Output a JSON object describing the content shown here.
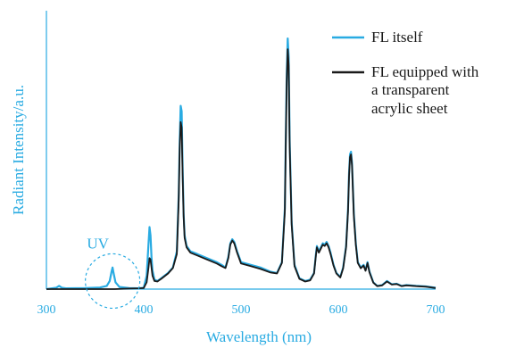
{
  "chart_data": {
    "type": "line",
    "xlabel": "Wavelength (nm)",
    "ylabel": "Radiant Intensity/a.u.",
    "xlim": [
      300,
      700
    ],
    "ylim": [
      0,
      1
    ],
    "x_ticks": [
      "300",
      "400",
      "500",
      "600",
      "700"
    ],
    "x_tick_values": [
      300,
      400,
      500,
      600,
      700
    ],
    "grid": false,
    "legend_position": "top-right",
    "legend": [
      {
        "series": 0,
        "lines": [
          "FL itself"
        ]
      },
      {
        "series": 1,
        "lines": [
          "FL equipped with",
          "a transparent",
          "acrylic sheet"
        ]
      }
    ],
    "annotations": [
      {
        "text": "UV",
        "circle_center": [
          368,
          0.03
        ],
        "circle_radius_nm": 28
      }
    ],
    "series": [
      {
        "color": "#29abe2",
        "x": [
          300,
          310,
          313,
          316,
          320,
          340,
          355,
          362,
          365,
          367,
          368,
          369,
          371,
          375,
          385,
          395,
          400,
          403,
          405,
          406,
          407,
          408,
          409,
          411,
          414,
          418,
          425,
          430,
          434,
          436,
          437,
          438,
          439,
          440,
          441,
          442,
          444,
          448,
          455,
          465,
          475,
          480,
          484,
          487,
          489,
          491,
          493,
          496,
          500,
          510,
          520,
          530,
          537,
          542,
          545,
          546,
          547,
          548,
          549,
          550,
          552,
          555,
          560,
          566,
          571,
          575,
          577,
          578,
          580,
          582,
          584,
          586,
          588,
          590,
          592,
          595,
          598,
          602,
          605,
          608,
          610,
          611,
          612,
          613,
          614,
          615,
          616,
          618,
          620,
          623,
          626,
          628,
          630,
          632,
          636,
          640,
          645,
          650,
          655,
          660,
          665,
          670,
          680,
          690,
          700
        ],
        "y": [
          0.0,
          0.005,
          0.012,
          0.005,
          0.003,
          0.004,
          0.006,
          0.012,
          0.03,
          0.065,
          0.08,
          0.06,
          0.025,
          0.008,
          0.004,
          0.003,
          0.005,
          0.05,
          0.17,
          0.23,
          0.2,
          0.12,
          0.07,
          0.035,
          0.03,
          0.04,
          0.06,
          0.08,
          0.14,
          0.35,
          0.55,
          0.68,
          0.66,
          0.45,
          0.28,
          0.2,
          0.16,
          0.14,
          0.13,
          0.115,
          0.1,
          0.09,
          0.08,
          0.12,
          0.17,
          0.185,
          0.175,
          0.14,
          0.1,
          0.09,
          0.08,
          0.065,
          0.06,
          0.1,
          0.3,
          0.55,
          0.8,
          0.93,
          0.86,
          0.55,
          0.25,
          0.09,
          0.04,
          0.03,
          0.035,
          0.06,
          0.13,
          0.16,
          0.14,
          0.155,
          0.17,
          0.165,
          0.175,
          0.16,
          0.135,
          0.09,
          0.06,
          0.045,
          0.08,
          0.16,
          0.3,
          0.43,
          0.5,
          0.51,
          0.47,
          0.38,
          0.28,
          0.17,
          0.1,
          0.08,
          0.09,
          0.07,
          0.1,
          0.065,
          0.025,
          0.012,
          0.015,
          0.03,
          0.018,
          0.02,
          0.012,
          0.015,
          0.012,
          0.01,
          0.005
        ]
      },
      {
        "color": "#1a1a1a",
        "x": [
          300,
          340,
          370,
          385,
          395,
          400,
          403,
          405,
          406,
          407,
          408,
          409,
          411,
          414,
          418,
          425,
          430,
          434,
          436,
          437,
          438,
          439,
          440,
          441,
          442,
          444,
          448,
          455,
          465,
          475,
          480,
          484,
          487,
          489,
          491,
          493,
          496,
          500,
          510,
          520,
          530,
          537,
          542,
          545,
          546,
          547,
          548,
          549,
          550,
          552,
          555,
          560,
          566,
          571,
          575,
          577,
          578,
          580,
          582,
          584,
          586,
          588,
          590,
          592,
          595,
          598,
          602,
          605,
          608,
          610,
          611,
          612,
          613,
          614,
          615,
          616,
          618,
          620,
          623,
          626,
          628,
          630,
          632,
          636,
          640,
          645,
          650,
          655,
          660,
          665,
          670,
          680,
          690,
          700
        ],
        "y": [
          0.0,
          0.0,
          0.0,
          0.002,
          0.003,
          0.004,
          0.025,
          0.08,
          0.115,
          0.11,
          0.08,
          0.05,
          0.03,
          0.028,
          0.038,
          0.058,
          0.078,
          0.13,
          0.33,
          0.52,
          0.62,
          0.6,
          0.42,
          0.27,
          0.19,
          0.155,
          0.135,
          0.125,
          0.11,
          0.095,
          0.085,
          0.078,
          0.115,
          0.165,
          0.18,
          0.17,
          0.135,
          0.095,
          0.085,
          0.075,
          0.062,
          0.058,
          0.097,
          0.29,
          0.53,
          0.77,
          0.89,
          0.83,
          0.53,
          0.24,
          0.085,
          0.038,
          0.028,
          0.032,
          0.058,
          0.125,
          0.155,
          0.135,
          0.15,
          0.165,
          0.16,
          0.17,
          0.155,
          0.13,
          0.087,
          0.058,
          0.043,
          0.077,
          0.155,
          0.29,
          0.42,
          0.49,
          0.5,
          0.46,
          0.37,
          0.27,
          0.165,
          0.097,
          0.077,
          0.087,
          0.068,
          0.097,
          0.062,
          0.024,
          0.011,
          0.014,
          0.028,
          0.017,
          0.019,
          0.011,
          0.014,
          0.011,
          0.009,
          0.004
        ]
      }
    ]
  },
  "colors": {
    "axis": "#29abe2",
    "series_fl": "#29abe2",
    "series_acrylic": "#1a1a1a"
  }
}
